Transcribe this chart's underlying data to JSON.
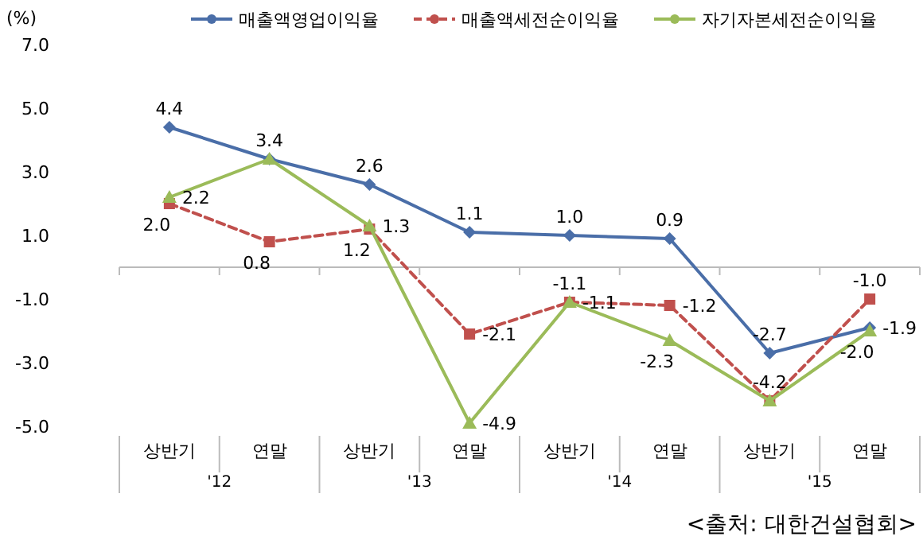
{
  "chart_data": {
    "type": "line",
    "ylabel": "(%)",
    "categories": [
      "상반기",
      "연말",
      "상반기",
      "연말",
      "상반기",
      "연말",
      "상반기",
      "연말"
    ],
    "series": [
      {
        "name": "매출액영업이익율",
        "color": "#4a6ea8",
        "marker": "diamond",
        "line_style": "solid",
        "values": [
          4.4,
          3.4,
          2.6,
          1.1,
          1.0,
          0.9,
          -2.7,
          -1.9
        ],
        "value_labels": [
          "4.4",
          "3.4",
          "2.6",
          "1.1",
          "1.0",
          "0.9",
          "-2.7",
          "-1.9"
        ]
      },
      {
        "name": "매출액세전순이익율",
        "color": "#c0504d",
        "marker": "square",
        "line_style": "dashed",
        "values": [
          2.0,
          0.8,
          1.2,
          -2.1,
          -1.1,
          -1.2,
          -4.2,
          -1.0
        ],
        "value_labels": [
          "2.0",
          "0.8",
          "1.2",
          "-2.1",
          "-1.1",
          "-1.2",
          "-4.2",
          "-1.0"
        ]
      },
      {
        "name": "자기자본세전순이익율",
        "color": "#9bbb59",
        "marker": "triangle",
        "line_style": "solid",
        "values": [
          2.2,
          3.4,
          1.3,
          -4.9,
          -1.1,
          -2.3,
          -4.2,
          -2.0
        ],
        "value_labels": [
          "2.2",
          null,
          "1.3",
          "-4.9",
          "-1.1",
          "-2.3",
          null,
          "-2.0"
        ]
      }
    ],
    "ylim": [
      -5,
      7
    ],
    "yticks": [
      {
        "value": -5,
        "label": "-5.0"
      },
      {
        "value": -3,
        "label": "-3.0"
      },
      {
        "value": -1,
        "label": "-1.0"
      },
      {
        "value": 1,
        "label": "1.0"
      },
      {
        "value": 3,
        "label": "3.0"
      },
      {
        "value": 5,
        "label": "5.0"
      },
      {
        "value": 7,
        "label": "7.0"
      }
    ],
    "grid": false,
    "legend": "top",
    "annotations": [
      "'12",
      "'13",
      "'14",
      "'15",
      "<출처: 대한건설협회>"
    ]
  }
}
